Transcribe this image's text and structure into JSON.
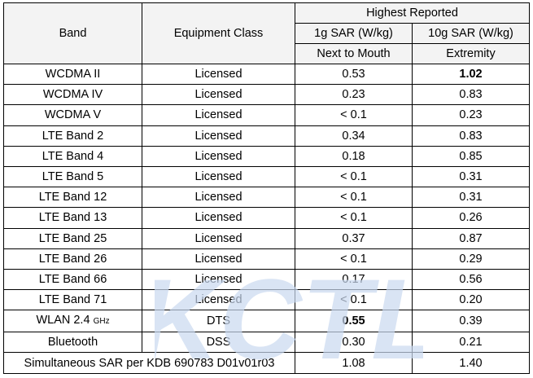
{
  "header": {
    "band": "Band",
    "equipment_class": "Equipment Class",
    "highest_reported": "Highest Reported",
    "col_1g": "1g SAR (W/kg)",
    "col_10g": "10g SAR (W/kg)",
    "sub_1g": "Next to Mouth",
    "sub_10g": "Extremity"
  },
  "rows": [
    {
      "band": "WCDMA II",
      "cls": "Licensed",
      "sar1g": "0.53",
      "sar10g": "1.02",
      "bold10g": true
    },
    {
      "band": "WCDMA IV",
      "cls": "Licensed",
      "sar1g": "0.23",
      "sar10g": "0.83"
    },
    {
      "band": "WCDMA V",
      "cls": "Licensed",
      "sar1g": "< 0.1",
      "sar10g": "0.23"
    },
    {
      "band": "LTE Band 2",
      "cls": "Licensed",
      "sar1g": "0.34",
      "sar10g": "0.83"
    },
    {
      "band": "LTE Band 4",
      "cls": "Licensed",
      "sar1g": "0.18",
      "sar10g": "0.85"
    },
    {
      "band": "LTE Band 5",
      "cls": "Licensed",
      "sar1g": "< 0.1",
      "sar10g": "0.31"
    },
    {
      "band": "LTE Band 12",
      "cls": "Licensed",
      "sar1g": "< 0.1",
      "sar10g": "0.31"
    },
    {
      "band": "LTE Band 13",
      "cls": "Licensed",
      "sar1g": "< 0.1",
      "sar10g": "0.26"
    },
    {
      "band": "LTE Band 25",
      "cls": "Licensed",
      "sar1g": "0.37",
      "sar10g": "0.87"
    },
    {
      "band": "LTE Band 26",
      "cls": "Licensed",
      "sar1g": "< 0.1",
      "sar10g": "0.29"
    },
    {
      "band": "LTE Band 66",
      "cls": "Licensed",
      "sar1g": "0.17",
      "sar10g": "0.56"
    },
    {
      "band": "LTE Band 71",
      "cls": "Licensed",
      "sar1g": "< 0.1",
      "sar10g": "0.20"
    },
    {
      "band": "WLAN 2.4",
      "unit": "GHz",
      "cls": "DTS",
      "sar1g": "0.55",
      "sar10g": "0.39",
      "bold1g": true
    },
    {
      "band": "Bluetooth",
      "cls": "DSS",
      "sar1g": "0.30",
      "sar10g": "0.21"
    }
  ],
  "footer": {
    "label": "Simultaneous SAR per KDB 690783 D01v01r03",
    "sar1g": "1.08",
    "sar10g": "1.40"
  },
  "watermark": {
    "text": "KCTL",
    "color": "#c9d8ef"
  }
}
